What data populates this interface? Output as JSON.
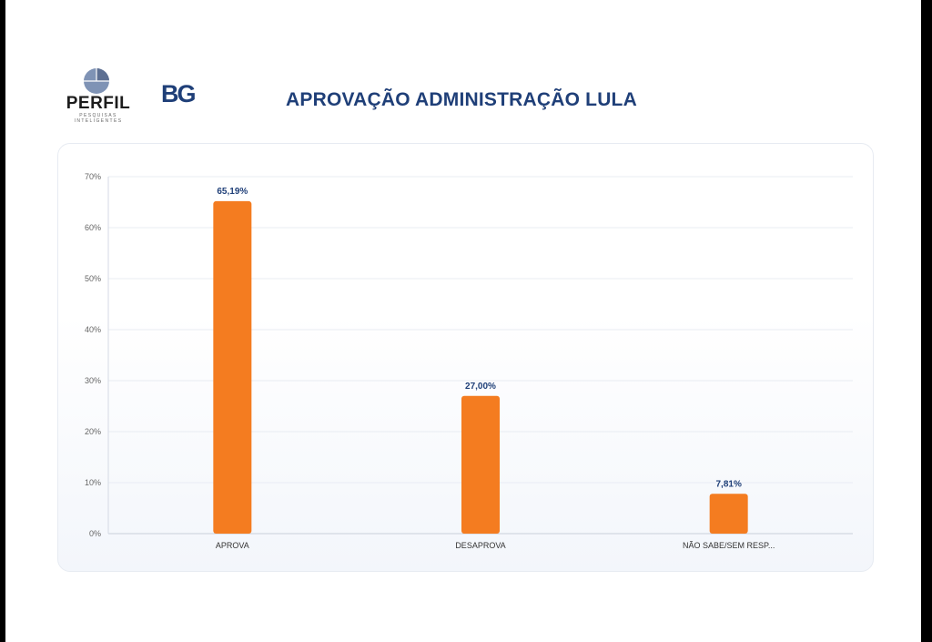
{
  "header": {
    "title": "APROVAÇÃO ADMINISTRAÇÃO LULA",
    "logo_left_text": "PERFIL",
    "logo_left_subtext": "PESQUISAS INTELIGENTES",
    "logo_right_text": "BG"
  },
  "colors": {
    "bar": "#f47c20",
    "title": "#1f3f78",
    "value_label": "#1f3f78",
    "grid": "#e8ecf3"
  },
  "chart_data": {
    "type": "bar",
    "categories": [
      "APROVA",
      "DESAPROVA",
      "NÃO SABE/SEM RESP..."
    ],
    "values": [
      65.19,
      27.0,
      7.81
    ],
    "value_labels": [
      "65,19%",
      "27,00%",
      "7,81%"
    ],
    "y_ticks": [
      "0%",
      "10%",
      "20%",
      "30%",
      "40%",
      "50%",
      "60%",
      "70%"
    ],
    "ylim": [
      0,
      70
    ],
    "grid": true,
    "legend": "none"
  }
}
